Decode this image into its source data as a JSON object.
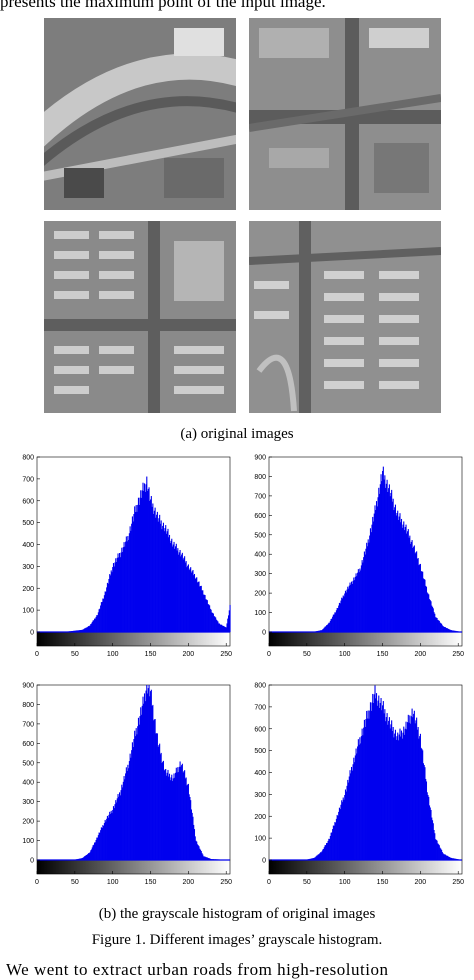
{
  "text": {
    "top_fragment": "presents the maximum point of the input image.",
    "caption_a": "(a) original images",
    "caption_b": "(b) the grayscale histogram of original images",
    "figure_caption": "Figure 1.    Different images’ grayscale histogram.",
    "bottom_fragment": "We went to extract urban roads from high-resolution"
  },
  "images": [
    {
      "name": "original-image-1",
      "scene": "curved-road"
    },
    {
      "name": "original-image-2",
      "scene": "crossroad"
    },
    {
      "name": "original-image-3",
      "scene": "crossroad-buildings"
    },
    {
      "name": "original-image-4",
      "scene": "dense-buildings"
    }
  ],
  "colors": {
    "bar": "#0000ee",
    "axis": "#000000",
    "aerial_base": "#8c8c8c"
  },
  "chart_data": [
    {
      "type": "bar",
      "xlim": [
        0,
        255
      ],
      "ylim": [
        0,
        800
      ],
      "xticks": [
        0,
        50,
        100,
        150,
        200,
        250
      ],
      "yticks": [
        0,
        100,
        200,
        300,
        400,
        500,
        600,
        700,
        800
      ],
      "x": [
        0,
        20,
        40,
        60,
        70,
        80,
        90,
        100,
        110,
        120,
        130,
        140,
        145,
        150,
        160,
        170,
        180,
        190,
        200,
        210,
        220,
        230,
        240,
        250,
        255
      ],
      "y": [
        0,
        0,
        2,
        10,
        30,
        80,
        180,
        300,
        360,
        430,
        560,
        650,
        690,
        600,
        520,
        470,
        400,
        360,
        300,
        250,
        180,
        100,
        40,
        20,
        120
      ]
    },
    {
      "type": "bar",
      "xlim": [
        0,
        255
      ],
      "ylim": [
        0,
        900
      ],
      "xticks": [
        0,
        50,
        100,
        150,
        200,
        250
      ],
      "yticks": [
        0,
        100,
        200,
        300,
        400,
        500,
        600,
        700,
        800,
        900
      ],
      "x": [
        0,
        40,
        60,
        70,
        80,
        90,
        100,
        110,
        120,
        130,
        140,
        150,
        160,
        170,
        180,
        190,
        200,
        210,
        220,
        230,
        240,
        255
      ],
      "y": [
        0,
        0,
        2,
        10,
        50,
        120,
        200,
        260,
        320,
        450,
        620,
        820,
        720,
        600,
        540,
        450,
        340,
        200,
        80,
        30,
        10,
        0
      ]
    },
    {
      "type": "bar",
      "xlim": [
        0,
        255
      ],
      "ylim": [
        0,
        900
      ],
      "xticks": [
        0,
        50,
        100,
        150,
        200,
        250
      ],
      "yticks": [
        0,
        100,
        200,
        300,
        400,
        500,
        600,
        700,
        800,
        900
      ],
      "x": [
        0,
        40,
        50,
        60,
        70,
        80,
        90,
        100,
        110,
        120,
        130,
        140,
        145,
        150,
        160,
        170,
        180,
        190,
        200,
        210,
        220,
        230,
        255
      ],
      "y": [
        0,
        0,
        2,
        10,
        40,
        120,
        200,
        260,
        350,
        480,
        650,
        800,
        900,
        860,
        600,
        450,
        420,
        500,
        380,
        100,
        20,
        5,
        0
      ]
    },
    {
      "type": "bar",
      "xlim": [
        0,
        255
      ],
      "ylim": [
        0,
        800
      ],
      "xticks": [
        0,
        50,
        100,
        150,
        200,
        250
      ],
      "yticks": [
        0,
        100,
        200,
        300,
        400,
        500,
        600,
        700,
        800
      ],
      "x": [
        0,
        40,
        50,
        60,
        70,
        80,
        90,
        100,
        110,
        120,
        130,
        140,
        150,
        160,
        170,
        180,
        190,
        200,
        210,
        220,
        230,
        240,
        255
      ],
      "y": [
        0,
        0,
        2,
        10,
        40,
        100,
        200,
        300,
        430,
        550,
        660,
        760,
        700,
        620,
        560,
        600,
        680,
        560,
        300,
        100,
        30,
        10,
        0
      ]
    }
  ]
}
